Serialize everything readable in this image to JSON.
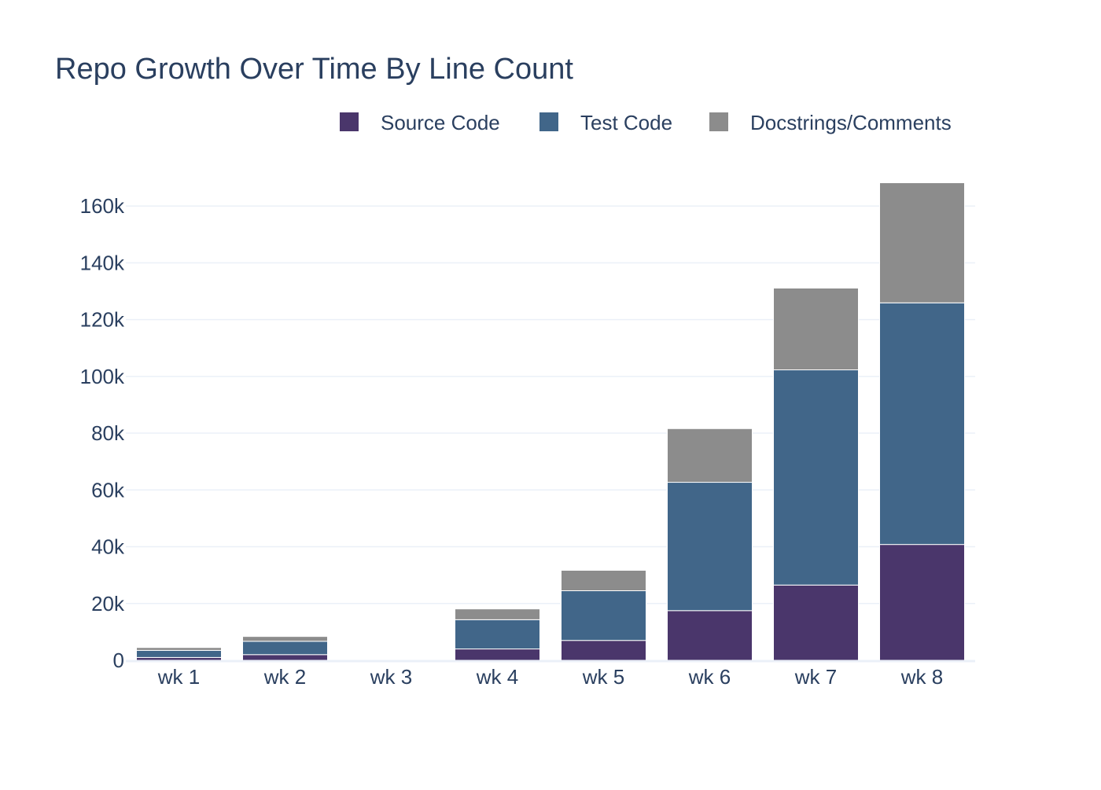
{
  "chart_data": {
    "type": "bar",
    "stacked": true,
    "title": "Repo Growth Over Time By Line Count",
    "xlabel": "",
    "ylabel": "",
    "categories": [
      "wk 1",
      "wk 2",
      "wk 3",
      "wk 4",
      "wk 5",
      "wk 6",
      "wk 7",
      "wk 8"
    ],
    "series": [
      {
        "name": "Source Code",
        "color": "#4a366b",
        "values": [
          1000,
          2000,
          150,
          4000,
          7000,
          17500,
          26500,
          40800
        ]
      },
      {
        "name": "Test Code",
        "color": "#416689",
        "values": [
          2500,
          4700,
          250,
          10300,
          17500,
          45200,
          75800,
          85100
        ]
      },
      {
        "name": "Docstrings/Comments",
        "color": "#8c8c8c",
        "values": [
          1000,
          1700,
          100,
          3800,
          7200,
          18900,
          28800,
          42300
        ]
      }
    ],
    "ylim": [
      0,
      170000
    ],
    "yticks": [
      0,
      20000,
      40000,
      60000,
      80000,
      100000,
      120000,
      140000,
      160000
    ],
    "ytick_labels": [
      "0",
      "20k",
      "40k",
      "60k",
      "80k",
      "100k",
      "120k",
      "140k",
      "160k"
    ],
    "grid": true,
    "legend_position": "top-right"
  }
}
